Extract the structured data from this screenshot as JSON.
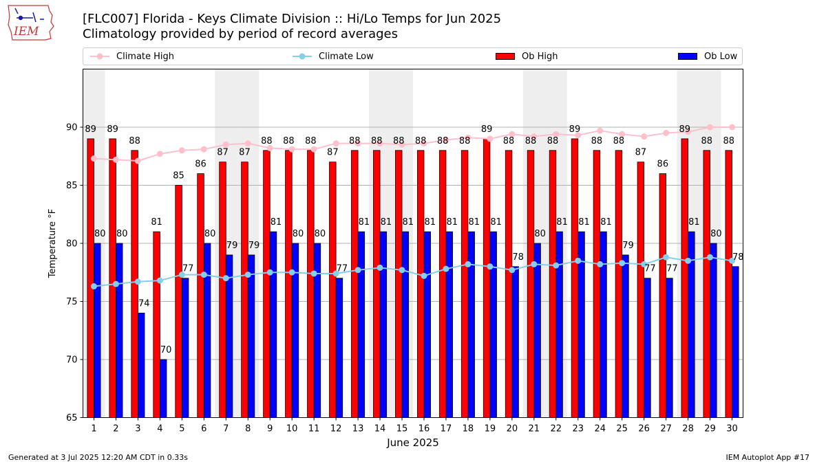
{
  "header": {
    "title": "[FLC007] Florida - Keys Climate Division :: Hi/Lo Temps for Jun 2025",
    "subtitle": "Climatology provided by period of record averages",
    "logo_text": "IEM"
  },
  "footer": {
    "generated": "Generated at 3 Jul 2025 12:20 AM CDT in 0.33s",
    "app": "IEM Autoplot App #17"
  },
  "colors": {
    "climate_high": "#ffc0cb",
    "climate_low": "#87ceeb",
    "ob_high": "#ff0000",
    "ob_low": "#0000ff",
    "weekend_band": "#eeeeee",
    "grid": "#b0b0b0"
  },
  "chart_data": {
    "type": "bar",
    "xlabel": "June 2025",
    "ylabel": "Temperature °F",
    "ylim": [
      65,
      95
    ],
    "yticks": [
      65,
      70,
      75,
      80,
      85,
      90
    ],
    "grid": true,
    "legend_position": "top",
    "categories": [
      "1",
      "2",
      "3",
      "4",
      "5",
      "6",
      "7",
      "8",
      "9",
      "10",
      "11",
      "12",
      "13",
      "14",
      "15",
      "16",
      "17",
      "18",
      "19",
      "20",
      "21",
      "22",
      "23",
      "24",
      "25",
      "26",
      "27",
      "28",
      "29",
      "30"
    ],
    "weekend_days": [
      1,
      7,
      8,
      14,
      15,
      21,
      22,
      28,
      29
    ],
    "series": [
      {
        "name": "Climate High",
        "kind": "line",
        "values": [
          87.3,
          87.2,
          87.1,
          87.7,
          88.0,
          88.1,
          88.5,
          88.6,
          88.2,
          88.1,
          88.1,
          88.6,
          88.6,
          88.6,
          88.5,
          88.6,
          88.9,
          89.1,
          89.0,
          89.4,
          89.2,
          89.4,
          89.3,
          89.7,
          89.4,
          89.2,
          89.5,
          89.6,
          90.0,
          90.0
        ]
      },
      {
        "name": "Climate Low",
        "kind": "line",
        "values": [
          76.3,
          76.5,
          76.7,
          76.8,
          77.3,
          77.3,
          77.0,
          77.3,
          77.5,
          77.5,
          77.4,
          77.4,
          77.7,
          77.9,
          77.7,
          77.2,
          77.8,
          78.2,
          78.0,
          77.7,
          78.2,
          78.1,
          78.5,
          78.2,
          78.3,
          78.2,
          78.8,
          78.5,
          78.8,
          78.5
        ]
      },
      {
        "name": "Ob High",
        "kind": "bar",
        "values": [
          89,
          89,
          88,
          81,
          85,
          86,
          87,
          87,
          88,
          88,
          88,
          87,
          88,
          88,
          88,
          88,
          88,
          88,
          89,
          88,
          88,
          88,
          89,
          88,
          88,
          87,
          86,
          89,
          88,
          88
        ]
      },
      {
        "name": "Ob Low",
        "kind": "bar",
        "values": [
          80,
          80,
          74,
          70,
          77,
          80,
          79,
          79,
          81,
          80,
          80,
          77,
          81,
          81,
          81,
          81,
          81,
          81,
          81,
          78,
          80,
          81,
          81,
          81,
          79,
          77,
          77,
          81,
          80,
          78
        ]
      }
    ]
  }
}
